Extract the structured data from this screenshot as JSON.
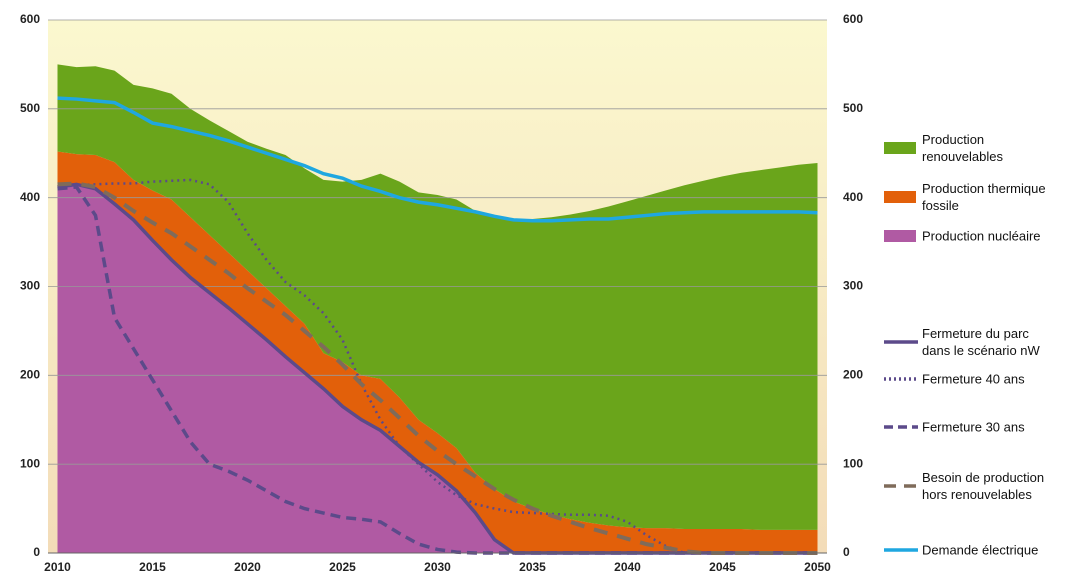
{
  "chart_data": {
    "type": "stacked_area",
    "x": [
      2010,
      2011,
      2012,
      2013,
      2014,
      2015,
      2016,
      2017,
      2018,
      2019,
      2020,
      2021,
      2022,
      2023,
      2024,
      2025,
      2026,
      2027,
      2028,
      2029,
      2030,
      2031,
      2032,
      2033,
      2034,
      2035,
      2036,
      2037,
      2038,
      2039,
      2040,
      2041,
      2042,
      2043,
      2044,
      2045,
      2046,
      2047,
      2048,
      2049,
      2050
    ],
    "xlim": [
      2009.5,
      2050.5
    ],
    "xticks": [
      2010,
      2015,
      2020,
      2025,
      2030,
      2035,
      2040,
      2045,
      2050
    ],
    "ylim": [
      0,
      600
    ],
    "yticks": [
      0,
      100,
      200,
      300,
      400,
      500,
      600
    ],
    "y2lim": [
      0,
      600
    ],
    "y2ticks": [
      0,
      100,
      200,
      300,
      400,
      500,
      600
    ],
    "grid": true,
    "series": [
      {
        "name": "Production nucléaire",
        "kind": "area",
        "color": "#b05aa3",
        "values": [
          412,
          415,
          410,
          393,
          375,
          352,
          330,
          310,
          293,
          276,
          258,
          240,
          221,
          203,
          185,
          165,
          150,
          138,
          120,
          102,
          88,
          70,
          45,
          15,
          0,
          0,
          0,
          0,
          0,
          0,
          0,
          0,
          0,
          0,
          0,
          0,
          0,
          0,
          0,
          0,
          0
        ]
      },
      {
        "name": "Production thermique fossile",
        "kind": "area",
        "color": "#e2600a",
        "values": [
          40,
          34,
          38,
          47,
          45,
          56,
          68,
          68,
          65,
          62,
          60,
          58,
          57,
          55,
          40,
          50,
          50,
          58,
          55,
          48,
          47,
          48,
          45,
          57,
          58,
          50,
          43,
          38,
          34,
          31,
          29,
          28,
          28,
          27,
          27,
          27,
          27,
          26,
          26,
          26,
          26
        ]
      },
      {
        "name": "Production renouvelables",
        "kind": "area",
        "color": "#6aa51b",
        "values": [
          98,
          98,
          100,
          103,
          107,
          115,
          119,
          122,
          129,
          137,
          145,
          157,
          170,
          175,
          195,
          203,
          220,
          231,
          243,
          256,
          268,
          280,
          295,
          306,
          318,
          326,
          335,
          343,
          351,
          359,
          367,
          374,
          380,
          387,
          392,
          397,
          401,
          405,
          408,
          411,
          413
        ]
      },
      {
        "name": "Fermeture du parc dans le scénario nW",
        "kind": "line",
        "style": "solid",
        "color": "#5c4a8a",
        "values": [
          412,
          415,
          410,
          393,
          375,
          352,
          330,
          310,
          293,
          276,
          258,
          240,
          221,
          203,
          185,
          165,
          150,
          138,
          120,
          102,
          88,
          70,
          45,
          15,
          0,
          0,
          0,
          0,
          0,
          0,
          0,
          0,
          0,
          0,
          0,
          0,
          0,
          0,
          0,
          0,
          0
        ]
      },
      {
        "name": "Fermeture 40 ans",
        "kind": "line",
        "style": "dotted",
        "color": "#5c4a8a",
        "values": [
          412,
          414,
          415,
          416,
          416,
          418,
          419,
          420,
          415,
          395,
          360,
          330,
          305,
          290,
          270,
          240,
          190,
          150,
          120,
          100,
          80,
          65,
          55,
          50,
          46,
          45,
          44,
          43,
          43,
          42,
          35,
          20,
          8,
          0,
          0,
          0,
          0,
          0,
          0,
          0,
          0
        ]
      },
      {
        "name": "Fermeture 30 ans",
        "kind": "line",
        "style": "dashed",
        "color": "#5c4a8a",
        "values": [
          410,
          412,
          380,
          265,
          230,
          195,
          160,
          125,
          100,
          92,
          82,
          70,
          58,
          50,
          45,
          40,
          38,
          35,
          22,
          10,
          4,
          1,
          0,
          0,
          0,
          0,
          0,
          0,
          0,
          0,
          0,
          0,
          0,
          0,
          0,
          0,
          0,
          0,
          0,
          0,
          0
        ]
      },
      {
        "name": "Besoin de production hors renouvelables",
        "kind": "line",
        "style": "longdash",
        "color": "#7f6b5a",
        "values": [
          415,
          416,
          412,
          400,
          385,
          372,
          360,
          345,
          330,
          315,
          298,
          283,
          268,
          250,
          232,
          212,
          190,
          172,
          152,
          132,
          115,
          100,
          86,
          72,
          60,
          50,
          42,
          35,
          28,
          22,
          16,
          10,
          6,
          2,
          0,
          0,
          0,
          0,
          0,
          0,
          0
        ]
      },
      {
        "name": "Demande électrique",
        "kind": "line",
        "style": "solid",
        "color": "#1fa7e0",
        "values": [
          512,
          511,
          509,
          507,
          496,
          484,
          480,
          475,
          470,
          464,
          457,
          450,
          443,
          436,
          427,
          422,
          413,
          407,
          400,
          395,
          392,
          388,
          384,
          379,
          375,
          374,
          374,
          375,
          376,
          376,
          378,
          380,
          382,
          383,
          384,
          384,
          384,
          384,
          384,
          384,
          383
        ]
      }
    ]
  }
}
